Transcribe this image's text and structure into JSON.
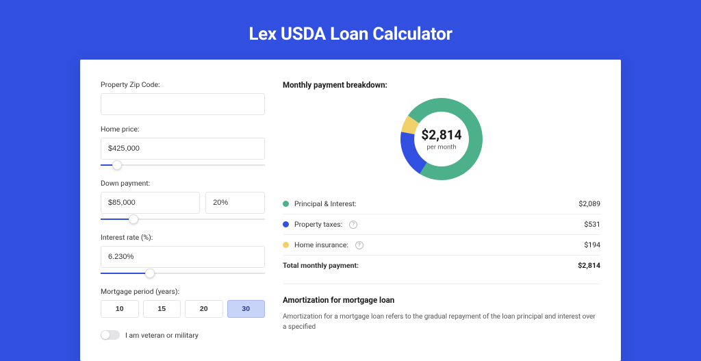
{
  "page": {
    "title": "Lex USDA Loan Calculator",
    "background_color": "#3150e0",
    "card_background": "#ffffff"
  },
  "form": {
    "zip": {
      "label": "Property Zip Code:",
      "value": ""
    },
    "home_price": {
      "label": "Home price:",
      "value": "$425,000",
      "slider_percent": 10
    },
    "down_payment": {
      "label": "Down payment:",
      "amount": "$85,000",
      "percent": "20%",
      "slider_percent": 20
    },
    "interest_rate": {
      "label": "Interest rate (%):",
      "value": "6.230%",
      "slider_percent": 30
    },
    "mortgage_period": {
      "label": "Mortgage period (years):",
      "options": [
        "10",
        "15",
        "20",
        "30"
      ],
      "selected_index": 3
    },
    "veteran": {
      "label": "I am veteran or military",
      "checked": false
    }
  },
  "breakdown": {
    "title": "Monthly payment breakdown:",
    "total_display": "$2,814",
    "total_sublabel": "per month",
    "donut": {
      "size": 120,
      "thickness": 20,
      "series": [
        {
          "label": "Principal & Interest:",
          "value": "$2,089",
          "percent": 74.2,
          "color": "#4cb08a"
        },
        {
          "label": "Property taxes:",
          "value": "$531",
          "percent": 18.9,
          "color": "#3150e0",
          "info": true
        },
        {
          "label": "Home insurance:",
          "value": "$194",
          "percent": 6.9,
          "color": "#f2d06a",
          "info": true
        }
      ],
      "start_angle": -55
    },
    "total_row": {
      "label": "Total monthly payment:",
      "value": "$2,814"
    }
  },
  "amortization": {
    "title": "Amortization for mortgage loan",
    "text": "Amortization for a mortgage loan refers to the gradual repayment of the loan principal and interest over a specified"
  }
}
